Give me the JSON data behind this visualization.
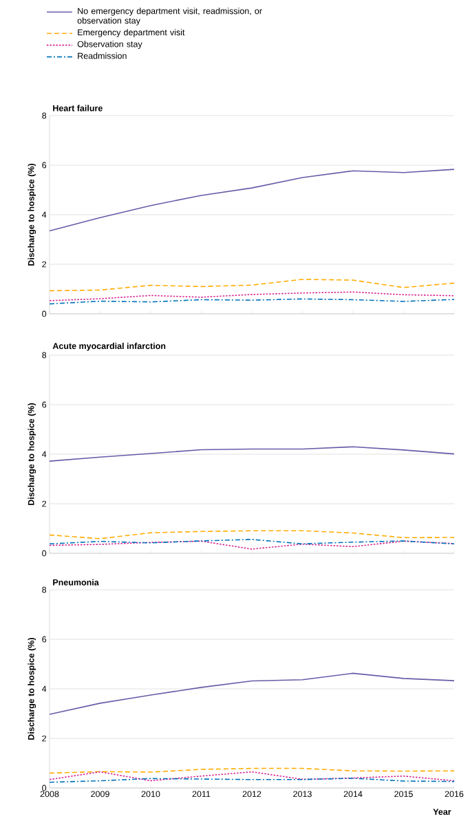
{
  "chart_data": [
    {
      "type": "line",
      "title": "Heart failure",
      "ylabel": "Discharge to hospice (%)",
      "x": [
        2008,
        2009,
        2010,
        2011,
        2012,
        2013,
        2014,
        2015,
        2016
      ],
      "xlim": [
        2008,
        2016
      ],
      "xticks": [
        2008,
        2009,
        2010,
        2011,
        2012,
        2013,
        2014,
        2015,
        2016
      ],
      "ylim": [
        0,
        8
      ],
      "yticks": [
        0,
        2,
        4,
        6,
        8
      ],
      "grid": "y",
      "legend": "top",
      "tick_labels": "y",
      "series": [
        {
          "name": "No emergency department visit, readmission, or observation stay",
          "color": "#6a5aa8",
          "line_style": "solid",
          "values": [
            3.35,
            3.88,
            4.37,
            4.78,
            5.08,
            5.5,
            5.77,
            5.7,
            5.83
          ]
        },
        {
          "name": "Emergency department visit",
          "color": "#ffab00",
          "line_style": "dashed",
          "values": [
            0.93,
            0.96,
            1.15,
            1.1,
            1.16,
            1.39,
            1.36,
            1.06,
            1.24
          ]
        },
        {
          "name": "Observation stay",
          "color": "#d6258f",
          "line_style": "dotted",
          "values": [
            0.53,
            0.61,
            0.74,
            0.67,
            0.78,
            0.84,
            0.88,
            0.77,
            0.73
          ]
        },
        {
          "name": "Readmission",
          "color": "#0072bc",
          "line_style": "dashdot",
          "values": [
            0.4,
            0.51,
            0.48,
            0.57,
            0.55,
            0.6,
            0.57,
            0.5,
            0.58
          ]
        }
      ]
    },
    {
      "type": "line",
      "title": "Acute myocardial infarction",
      "ylabel": "Discharge to hospice (%)",
      "x": [
        2008,
        2009,
        2010,
        2011,
        2012,
        2013,
        2014,
        2015,
        2016
      ],
      "xlim": [
        2008,
        2016
      ],
      "xticks": [
        2008,
        2009,
        2010,
        2011,
        2012,
        2013,
        2014,
        2015,
        2016
      ],
      "ylim": [
        0,
        8
      ],
      "yticks": [
        0,
        2,
        4,
        6,
        8
      ],
      "grid": "y",
      "tick_labels": "y",
      "series": [
        {
          "color": "#6a5aa8",
          "line_style": "solid",
          "values": [
            3.72,
            3.88,
            4.03,
            4.18,
            4.21,
            4.21,
            4.3,
            4.17,
            4.01
          ]
        },
        {
          "color": "#ffab00",
          "line_style": "dashed",
          "values": [
            0.74,
            0.59,
            0.83,
            0.88,
            0.91,
            0.91,
            0.82,
            0.63,
            0.64
          ]
        },
        {
          "color": "#d6258f",
          "line_style": "dotted",
          "values": [
            0.32,
            0.36,
            0.44,
            0.49,
            0.17,
            0.37,
            0.27,
            0.49,
            0.39
          ]
        },
        {
          "color": "#0072bc",
          "line_style": "dashdot",
          "values": [
            0.38,
            0.48,
            0.42,
            0.5,
            0.56,
            0.38,
            0.45,
            0.5,
            0.38
          ]
        }
      ]
    },
    {
      "type": "line",
      "title": "Pneumonia",
      "ylabel": "Discharge to hospice (%)",
      "xlabel": "Year",
      "x": [
        2008,
        2009,
        2010,
        2011,
        2012,
        2013,
        2014,
        2015,
        2016
      ],
      "xlim": [
        2008,
        2016
      ],
      "xticks": [
        2008,
        2009,
        2010,
        2011,
        2012,
        2013,
        2014,
        2015,
        2016
      ],
      "ylim": [
        0,
        8
      ],
      "yticks": [
        0,
        2,
        4,
        6,
        8
      ],
      "grid": "y",
      "series": [
        {
          "color": "#6a5aa8",
          "line_style": "solid",
          "values": [
            2.97,
            3.42,
            3.75,
            4.06,
            4.32,
            4.37,
            4.63,
            4.42,
            4.33
          ]
        },
        {
          "color": "#ffab00",
          "line_style": "dashed",
          "values": [
            0.6,
            0.66,
            0.64,
            0.75,
            0.79,
            0.79,
            0.69,
            0.68,
            0.69
          ]
        },
        {
          "color": "#d6258f",
          "line_style": "dotted",
          "values": [
            0.34,
            0.65,
            0.29,
            0.48,
            0.65,
            0.35,
            0.4,
            0.48,
            0.29
          ]
        },
        {
          "color": "#0072bc",
          "line_style": "dashdot",
          "values": [
            0.23,
            0.29,
            0.38,
            0.36,
            0.34,
            0.34,
            0.39,
            0.28,
            0.26
          ]
        }
      ]
    }
  ]
}
